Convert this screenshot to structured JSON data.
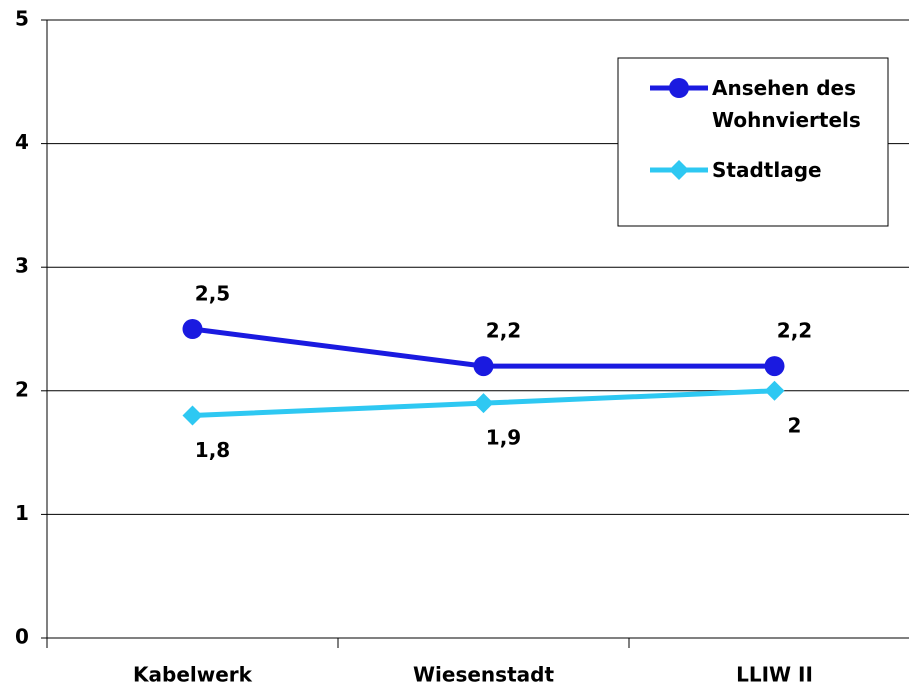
{
  "chart_data": {
    "type": "line",
    "categories": [
      "Kabelwerk",
      "Wiesenstadt",
      "LLIW II"
    ],
    "series": [
      {
        "name": "Ansehen des Wohnviertels",
        "color": "#1a1ae0",
        "marker": "circle",
        "values": [
          2.5,
          2.2,
          2.2
        ],
        "value_labels": [
          "2,5",
          "2,2",
          "2,2"
        ]
      },
      {
        "name": "Stadtlage",
        "color": "#2ec8f2",
        "marker": "diamond",
        "values": [
          1.8,
          1.9,
          2
        ],
        "value_labels": [
          "1,8",
          "1,9",
          "2"
        ]
      }
    ],
    "ylim": [
      0,
      5
    ],
    "yticks": [
      0,
      1,
      2,
      3,
      4,
      5
    ],
    "grid": true,
    "legend": "upper right"
  }
}
